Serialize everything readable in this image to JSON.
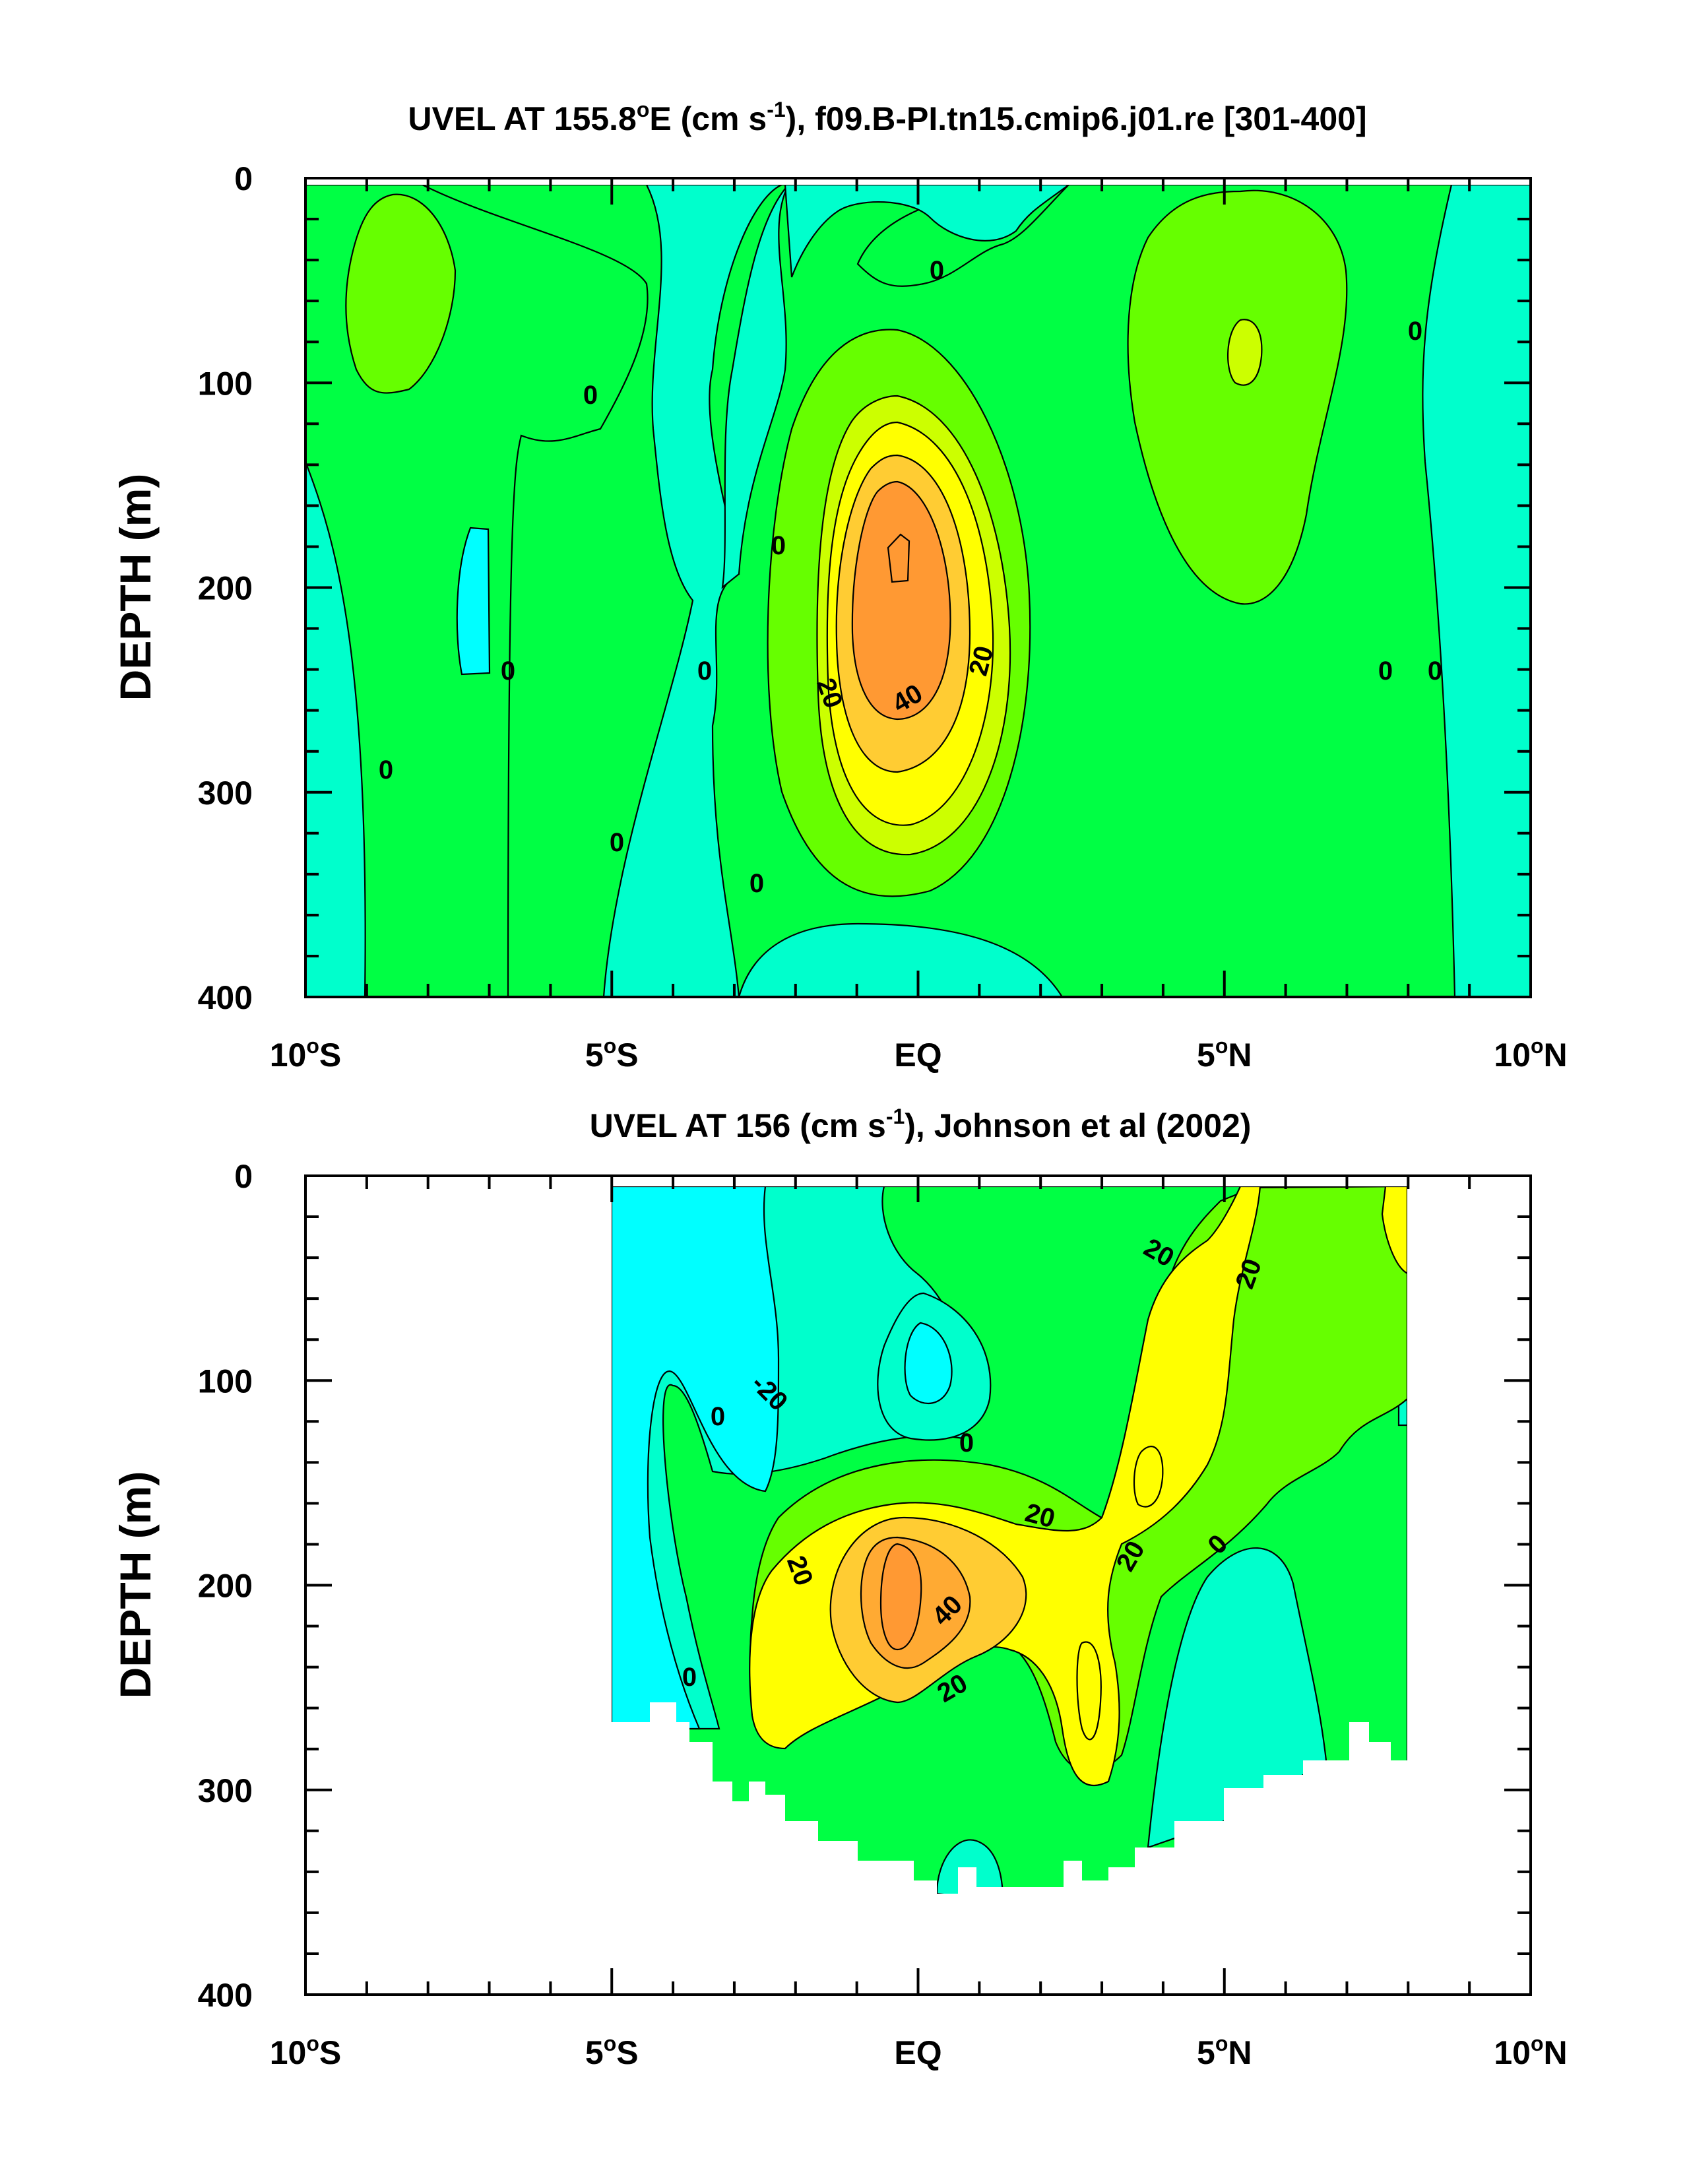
{
  "chart_data": [
    {
      "type": "contour",
      "title": "UVEL AT 155.8°E (cm s-1), f09.B-PI.tn15.cmip6.j01.re [301-400]",
      "title_parts": {
        "pre": "UVEL AT 155.8",
        "deg": "o",
        "mid": "E (cm s",
        "sup": "-1",
        "post": "), f09.B-PI.tn15.cmip6.j01.re [301-400]"
      },
      "ylabel": "DEPTH (m)",
      "xlim": [
        -10,
        10
      ],
      "ylim": [
        400,
        0
      ],
      "x_ticks": [
        {
          "value": -10,
          "num": "10",
          "deg": "o",
          "hemi": "S"
        },
        {
          "value": -5,
          "num": "5",
          "deg": "o",
          "hemi": "S"
        },
        {
          "value": 0,
          "num": "EQ",
          "deg": "",
          "hemi": ""
        },
        {
          "value": 5,
          "num": "5",
          "deg": "o",
          "hemi": "N"
        },
        {
          "value": 10,
          "num": "10",
          "deg": "o",
          "hemi": "N"
        }
      ],
      "y_ticks": [
        "0",
        "100",
        "200",
        "300",
        "400"
      ],
      "contour_interval": 10,
      "fill_colors": {
        "lt_-10": "#00FFFF",
        "-10_0": "#00FFCC",
        "0_10": "#00FF44",
        "10_20": "#66FF00",
        "20_30": "#CCFF00",
        "30_40": "#FFFF00",
        "40_50": "#FFCC33",
        "ge_50": "#FF9933"
      },
      "contour_labels": [
        "0",
        "0",
        "0",
        "0",
        "0",
        "0",
        "0",
        "0",
        "0",
        "0",
        "0",
        "20",
        "20",
        "40"
      ],
      "features": [
        {
          "name": "Equatorial Undercurrent core",
          "lat": -0.3,
          "depth": 190,
          "max_speed": 55
        }
      ]
    },
    {
      "type": "contour",
      "title": "UVEL AT 156 (cm s-1), Johnson et al (2002)",
      "title_parts": {
        "pre": "UVEL AT 156 (cm s",
        "sup": "-1",
        "post": "), Johnson et al (2002)"
      },
      "ylabel": "DEPTH (m)",
      "xlim": [
        -10,
        10
      ],
      "ylim": [
        400,
        0
      ],
      "x_ticks": [
        {
          "value": -10,
          "num": "10",
          "deg": "o",
          "hemi": "S"
        },
        {
          "value": -5,
          "num": "5",
          "deg": "o",
          "hemi": "S"
        },
        {
          "value": 0,
          "num": "EQ",
          "deg": "",
          "hemi": ""
        },
        {
          "value": 5,
          "num": "5",
          "deg": "o",
          "hemi": "N"
        },
        {
          "value": 10,
          "num": "10",
          "deg": "o",
          "hemi": "N"
        }
      ],
      "y_ticks": [
        "0",
        "100",
        "200",
        "300",
        "400"
      ],
      "contour_interval": 10,
      "data_coverage": {
        "lat_range": [
          -5,
          8
        ],
        "max_depth": 350
      },
      "contour_labels": [
        "20",
        "20",
        "-20",
        "0",
        "0",
        "20",
        "20",
        "20",
        "0",
        "40",
        "0",
        "20",
        "20"
      ],
      "features": [
        {
          "name": "Equatorial Undercurrent core",
          "lat": -0.2,
          "depth": 200,
          "max_speed": 52
        }
      ]
    }
  ]
}
